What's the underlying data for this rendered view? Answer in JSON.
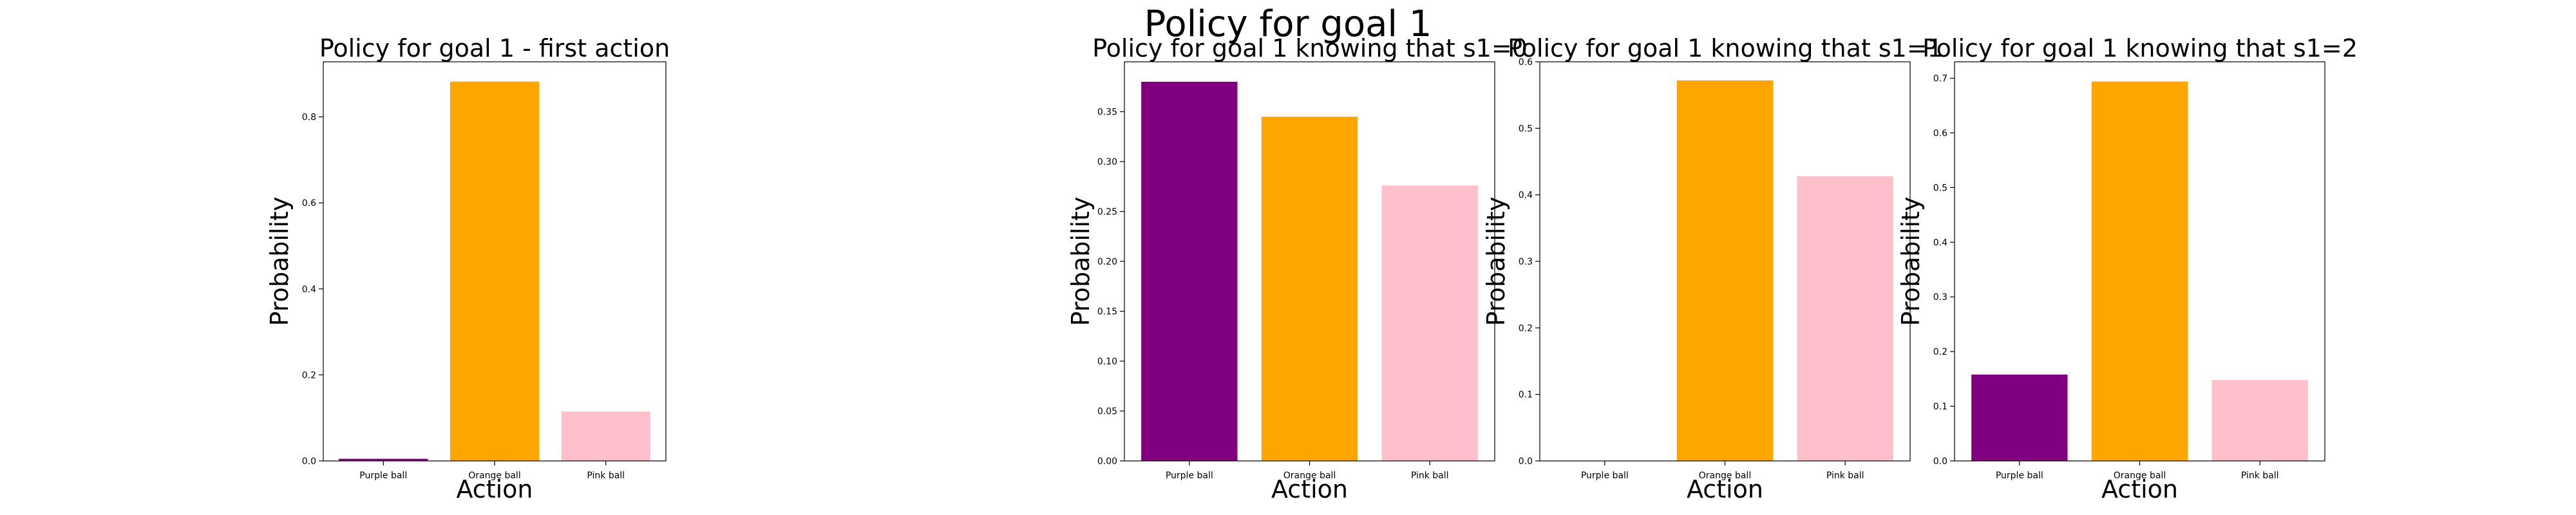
{
  "figure": {
    "title": "Policy for goal 1"
  },
  "chart_data": [
    {
      "type": "bar",
      "title": "Policy for goal 1 - first action",
      "xlabel": "Action",
      "ylabel": "Probability",
      "categories": [
        "Purple ball",
        "Orange ball",
        "Pink ball"
      ],
      "values": [
        0.005,
        0.882,
        0.115
      ],
      "colors": [
        "#800080",
        "#FFA500",
        "#FFC0CB"
      ],
      "ylim": [
        0,
        0.928
      ],
      "yticks": [
        0.0,
        0.2,
        0.4,
        0.6,
        0.8
      ],
      "ytick_labels": [
        "0.0",
        "0.2",
        "0.4",
        "0.6",
        "0.8"
      ],
      "grid": false
    },
    {
      "type": "bar",
      "title": "Policy for goal 1 knowing that s1=0",
      "xlabel": "Action",
      "ylabel": "Probability",
      "categories": [
        "Purple ball",
        "Orange ball",
        "Pink ball"
      ],
      "values": [
        0.38,
        0.345,
        0.276
      ],
      "colors": [
        "#800080",
        "#FFA500",
        "#FFC0CB"
      ],
      "ylim": [
        0,
        0.4
      ],
      "yticks": [
        0.0,
        0.05,
        0.1,
        0.15,
        0.2,
        0.25,
        0.3,
        0.35
      ],
      "ytick_labels": [
        "0.00",
        "0.05",
        "0.10",
        "0.15",
        "0.20",
        "0.25",
        "0.30",
        "0.35"
      ],
      "grid": false
    },
    {
      "type": "bar",
      "title": "Policy for goal 1 knowing that s1=1",
      "xlabel": "Action",
      "ylabel": "Probability",
      "categories": [
        "Purple ball",
        "Orange ball",
        "Pink ball"
      ],
      "values": [
        0.0,
        0.572,
        0.428
      ],
      "colors": [
        "#800080",
        "#FFA500",
        "#FFC0CB"
      ],
      "ylim": [
        0,
        0.6
      ],
      "yticks": [
        0.0,
        0.1,
        0.2,
        0.3,
        0.4,
        0.5,
        0.6
      ],
      "ytick_labels": [
        "0.0",
        "0.1",
        "0.2",
        "0.3",
        "0.4",
        "0.5",
        "0.6"
      ],
      "grid": false
    },
    {
      "type": "bar",
      "title": "Policy for goal 1 knowing that s1=2",
      "xlabel": "Action",
      "ylabel": "Probability",
      "categories": [
        "Purple ball",
        "Orange ball",
        "Pink ball"
      ],
      "values": [
        0.158,
        0.694,
        0.148
      ],
      "colors": [
        "#800080",
        "#FFA500",
        "#FFC0CB"
      ],
      "ylim": [
        0,
        0.73
      ],
      "yticks": [
        0.0,
        0.1,
        0.2,
        0.3,
        0.4,
        0.5,
        0.6,
        0.7
      ],
      "ytick_labels": [
        "0.0",
        "0.1",
        "0.2",
        "0.3",
        "0.4",
        "0.5",
        "0.6",
        "0.7"
      ],
      "grid": false
    }
  ]
}
